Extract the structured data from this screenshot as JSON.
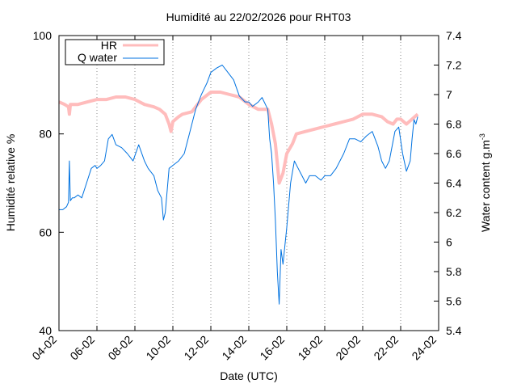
{
  "chart_data": {
    "type": "line",
    "title": "Humidité au 22/02/2026 pour RHT03",
    "xlabel": "Date (UTC)",
    "ylabel_left": "Humidité relative %",
    "ylabel_right_prefix": "Water content g.m",
    "ylabel_right_superscript": "-3",
    "x_ticks": [
      "04-02",
      "06-02",
      "08-02",
      "10-02",
      "12-02",
      "14-02",
      "16-02",
      "18-02",
      "20-02",
      "22-02",
      "24-02"
    ],
    "x_range_days": [
      4,
      24
    ],
    "y_left_ticks": [
      "40",
      "60",
      "80",
      "100"
    ],
    "y_left_range": [
      40,
      100
    ],
    "y_right_ticks": [
      "5.4",
      "5.6",
      "5.8",
      "6",
      "6.2",
      "6.4",
      "6.6",
      "6.8",
      "7",
      "7.2",
      "7.4"
    ],
    "y_right_range": [
      5.4,
      7.4
    ],
    "grid": "vertical dotted",
    "legend_position": "top-left",
    "series": [
      {
        "name": "HR",
        "color": "#ffbcbc",
        "axis": "left",
        "x_day": [
          4.0,
          4.3,
          4.5,
          4.55,
          4.6,
          5.0,
          5.5,
          6.0,
          6.5,
          7.0,
          7.5,
          8.0,
          8.5,
          9.0,
          9.3,
          9.6,
          9.8,
          9.9,
          10.0,
          10.3,
          10.5,
          11.0,
          11.2,
          11.5,
          12.0,
          12.5,
          13.0,
          13.5,
          14.0,
          14.5,
          15.0,
          15.2,
          15.4,
          15.5,
          15.6,
          15.8,
          16.0,
          16.3,
          16.5,
          17.0,
          17.5,
          18.0,
          18.5,
          19.0,
          19.5,
          20.0,
          20.5,
          21.0,
          21.3,
          21.6,
          21.8,
          22.0,
          22.3,
          22.6,
          22.9
        ],
        "values": [
          86.5,
          86,
          85.5,
          84,
          86,
          86,
          86.5,
          87,
          87,
          87.5,
          87.5,
          87,
          86,
          85.5,
          85,
          84,
          82,
          80.5,
          82.5,
          83.5,
          84,
          84.5,
          85.5,
          87,
          88.5,
          88.5,
          88,
          87.5,
          86,
          85,
          85,
          82,
          78,
          74,
          70,
          72,
          76,
          78,
          80,
          80.5,
          81,
          81.5,
          82,
          82.5,
          83,
          84,
          84,
          83.5,
          82.5,
          82,
          83,
          83,
          82,
          83,
          84
        ]
      },
      {
        "name": "Q water",
        "color": "#0072e0",
        "axis": "right",
        "x_day": [
          4.0,
          4.2,
          4.4,
          4.5,
          4.55,
          4.6,
          4.7,
          4.8,
          5.0,
          5.2,
          5.5,
          5.7,
          5.9,
          6.0,
          6.2,
          6.4,
          6.6,
          6.8,
          7.0,
          7.3,
          7.6,
          7.9,
          8.2,
          8.5,
          8.7,
          9.0,
          9.2,
          9.4,
          9.5,
          9.6,
          9.8,
          10.0,
          10.3,
          10.6,
          10.9,
          11.2,
          11.5,
          11.8,
          12.0,
          12.3,
          12.6,
          12.9,
          13.2,
          13.5,
          13.8,
          14.0,
          14.2,
          14.5,
          14.7,
          15.0,
          15.1,
          15.2,
          15.3,
          15.4,
          15.5,
          15.6,
          15.7,
          15.8,
          16.0,
          16.2,
          16.4,
          16.6,
          16.8,
          17.0,
          17.2,
          17.5,
          17.8,
          18.0,
          18.3,
          18.6,
          19.0,
          19.3,
          19.6,
          19.9,
          20.2,
          20.5,
          20.8,
          21.0,
          21.2,
          21.4,
          21.7,
          21.9,
          22.1,
          22.3,
          22.5,
          22.6,
          22.7,
          22.8,
          22.9
        ],
        "values": [
          6.22,
          6.22,
          6.24,
          6.27,
          6.55,
          6.28,
          6.3,
          6.3,
          6.32,
          6.3,
          6.42,
          6.5,
          6.52,
          6.5,
          6.52,
          6.55,
          6.7,
          6.73,
          6.66,
          6.64,
          6.6,
          6.55,
          6.66,
          6.55,
          6.5,
          6.45,
          6.35,
          6.3,
          6.15,
          6.2,
          6.5,
          6.52,
          6.55,
          6.6,
          6.75,
          6.9,
          7.0,
          7.08,
          7.15,
          7.18,
          7.2,
          7.15,
          7.1,
          6.99,
          6.95,
          6.95,
          6.92,
          6.95,
          6.98,
          6.9,
          6.7,
          6.6,
          6.4,
          6.15,
          5.8,
          5.58,
          5.95,
          5.85,
          6.1,
          6.4,
          6.55,
          6.5,
          6.45,
          6.4,
          6.45,
          6.45,
          6.42,
          6.45,
          6.45,
          6.5,
          6.6,
          6.7,
          6.7,
          6.68,
          6.72,
          6.75,
          6.65,
          6.55,
          6.5,
          6.55,
          6.75,
          6.78,
          6.6,
          6.48,
          6.55,
          6.7,
          6.83,
          6.8,
          6.85
        ]
      }
    ]
  }
}
